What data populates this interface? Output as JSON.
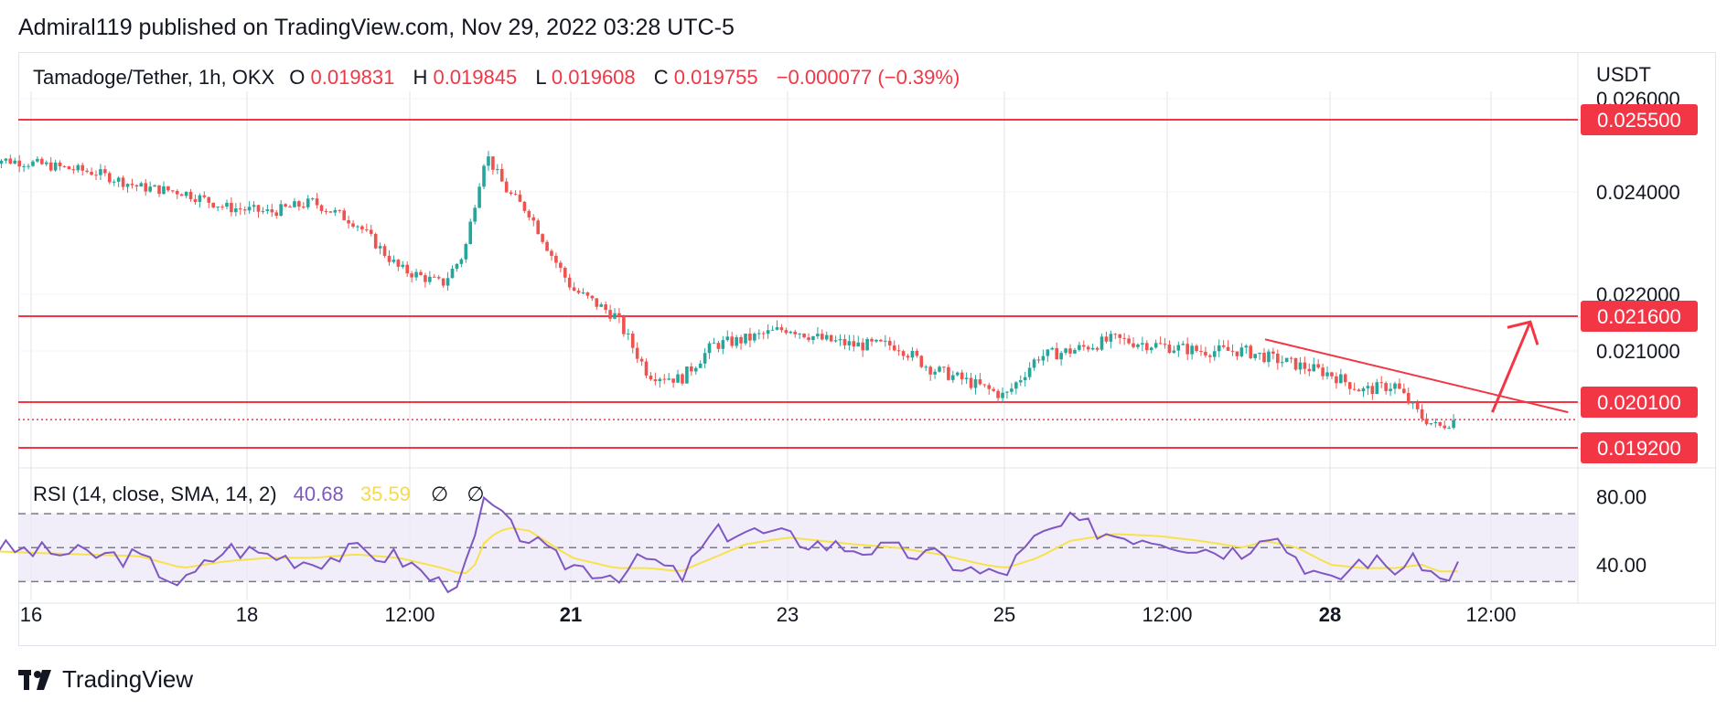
{
  "header": {
    "published_line": "Admiral119 published on TradingView.com, Nov 29, 2022 03:28 UTC-5"
  },
  "legend": {
    "symbol": "Tamadoge/Tether, 1h, OKX",
    "open_label": "O",
    "open_value": "0.019831",
    "high_label": "H",
    "high_value": "0.019845",
    "low_label": "L",
    "low_value": "0.019608",
    "close_label": "C",
    "close_value": "0.019755",
    "change": "−0.000077 (−0.39%)"
  },
  "currency_label": "USDT",
  "rsi_legend": {
    "label": "RSI (14, close, SMA, 14, 2)",
    "rsi_value": "40.68",
    "sma_value": "35.59",
    "icon1": "∅",
    "icon2": "∅"
  },
  "brand": {
    "name": "TradingView"
  },
  "colors": {
    "up": "#26a69a",
    "down": "#ef5350",
    "line": "#f23645",
    "rsi": "#7e57c2",
    "rsi_sma": "#f7e14c",
    "band": "#ede7f6"
  },
  "chart_data": {
    "type": "line",
    "title": "Tamadoge/Tether, 1h, OKX",
    "ylabel": "USDT",
    "price_axis_ticks": [
      "0.026000",
      "0.024000",
      "0.022000",
      "0.021000"
    ],
    "x_ticks": [
      {
        "label": "16",
        "bold": false
      },
      {
        "label": "18",
        "bold": false
      },
      {
        "label": "12:00",
        "bold": false
      },
      {
        "label": "21",
        "bold": true
      },
      {
        "label": "23",
        "bold": false
      },
      {
        "label": "25",
        "bold": false
      },
      {
        "label": "12:00",
        "bold": false
      },
      {
        "label": "28",
        "bold": true
      },
      {
        "label": "12:00",
        "bold": false
      }
    ],
    "horizontal_levels": [
      {
        "value": 0.0255,
        "label": "0.025500"
      },
      {
        "value": 0.0216,
        "label": "0.021600"
      },
      {
        "value": 0.0201,
        "label": "0.020100"
      },
      {
        "value": 0.0192,
        "label": "0.019200"
      }
    ],
    "current_price": 0.019755,
    "price_series": {
      "name": "close",
      "x_days": [
        15.6,
        16.0,
        16.3,
        16.6,
        17.0,
        17.4,
        17.8,
        18.2,
        18.6,
        19.0,
        19.4,
        19.8,
        20.0,
        20.2,
        20.4,
        20.6,
        20.8,
        21.0,
        21.4,
        21.7,
        22.0,
        22.3,
        22.6,
        23.0,
        23.3,
        23.6,
        24.0,
        24.3,
        24.6,
        25.0,
        25.3,
        25.6,
        26.0,
        26.4,
        26.8,
        27.2,
        27.6,
        28.0,
        28.3,
        28.6,
        28.85,
        29.0,
        29.15
      ],
      "values": [
        0.0247,
        0.0246,
        0.0245,
        0.0244,
        0.0241,
        0.024,
        0.0237,
        0.0236,
        0.0238,
        0.0234,
        0.0225,
        0.0222,
        0.0228,
        0.0248,
        0.024,
        0.0236,
        0.0228,
        0.0221,
        0.0216,
        0.0206,
        0.0205,
        0.0211,
        0.0212,
        0.0214,
        0.0212,
        0.0211,
        0.0211,
        0.0207,
        0.0205,
        0.0202,
        0.0209,
        0.021,
        0.0212,
        0.0211,
        0.021,
        0.021,
        0.0208,
        0.0206,
        0.0203,
        0.0204,
        0.0198,
        0.0196,
        0.01975
      ]
    },
    "trendline": {
      "from": {
        "x_day": 27.4,
        "value": 0.0212
      },
      "to": {
        "x_day": 30.2,
        "value": 0.0199
      }
    },
    "projection_arrow": {
      "from": {
        "x_day": 29.5,
        "value": 0.0199
      },
      "to": {
        "x_day": 29.85,
        "value": 0.0215
      }
    },
    "rsi": {
      "ylim": [
        20,
        90
      ],
      "ticks": [
        "80.00",
        "40.00"
      ],
      "band": [
        30,
        70
      ],
      "mid": 50,
      "x_days": [
        15.6,
        16.0,
        16.5,
        17.0,
        17.4,
        17.8,
        18.2,
        18.6,
        19.0,
        19.4,
        19.8,
        20.0,
        20.1,
        20.2,
        20.4,
        20.6,
        20.8,
        21.0,
        21.4,
        21.7,
        22.0,
        22.3,
        22.6,
        23.0,
        23.3,
        23.6,
        24.0,
        24.4,
        24.8,
        25.0,
        25.3,
        25.6,
        26.0,
        26.4,
        26.8,
        27.2,
        27.4,
        27.7,
        28.0,
        28.3,
        28.6,
        28.85,
        29.0,
        29.2
      ],
      "rsi_values": [
        50,
        48,
        46,
        44,
        28,
        50,
        46,
        42,
        48,
        44,
        28,
        34,
        55,
        80,
        62,
        56,
        44,
        40,
        34,
        44,
        32,
        58,
        60,
        56,
        52,
        50,
        48,
        44,
        34,
        36,
        56,
        65,
        58,
        56,
        50,
        48,
        62,
        44,
        28,
        44,
        38,
        42,
        30,
        40
      ],
      "sma_values": [
        48,
        47,
        46,
        45,
        38,
        42,
        44,
        44,
        46,
        44,
        38,
        34,
        40,
        55,
        62,
        60,
        52,
        44,
        38,
        38,
        36,
        44,
        52,
        56,
        54,
        52,
        50,
        46,
        40,
        38,
        44,
        54,
        58,
        57,
        54,
        50,
        54,
        50,
        40,
        38,
        38,
        40,
        36,
        36
      ],
      "current_rsi": 40.68,
      "current_sma": 35.59
    }
  }
}
